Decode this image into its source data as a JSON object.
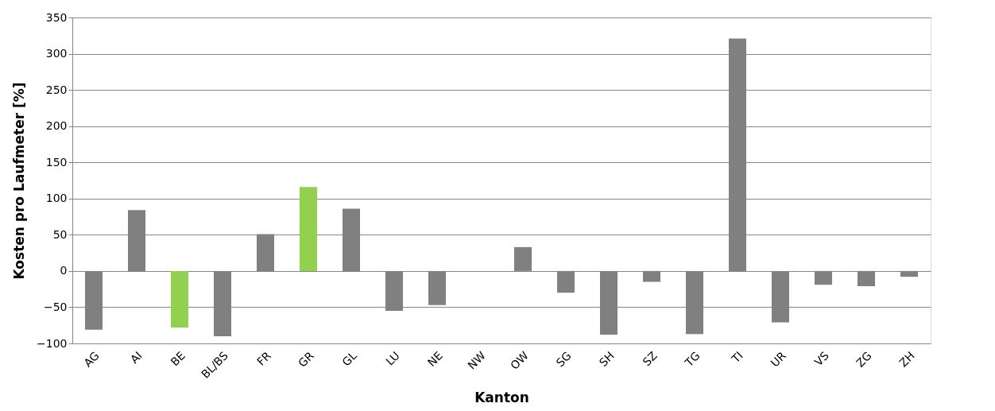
{
  "chart_data": {
    "type": "bar",
    "xlabel": "Kanton",
    "ylabel": "Kosten pro Laufmeter [%]",
    "categories": [
      "AG",
      "AI",
      "BE",
      "BL/BS",
      "FR",
      "GR",
      "GL",
      "LU",
      "NE",
      "NW",
      "OW",
      "SG",
      "SH",
      "SZ",
      "TG",
      "TI",
      "UR",
      "VS",
      "ZG",
      "ZH"
    ],
    "values": [
      -81,
      84,
      -78,
      -90,
      51,
      116,
      86,
      -55,
      -47,
      0,
      33,
      -30,
      -88,
      -15,
      -87,
      321,
      -71,
      -19,
      -21,
      -8
    ],
    "colors": [
      "#808080",
      "#808080",
      "#92d050",
      "#808080",
      "#808080",
      "#92d050",
      "#808080",
      "#808080",
      "#808080",
      "#808080",
      "#808080",
      "#808080",
      "#808080",
      "#808080",
      "#808080",
      "#808080",
      "#808080",
      "#808080",
      "#808080",
      "#808080"
    ],
    "ylim": [
      -100,
      350
    ],
    "yticks": [
      -100,
      -50,
      0,
      50,
      100,
      150,
      200,
      250,
      300,
      350
    ],
    "grid": "y"
  }
}
